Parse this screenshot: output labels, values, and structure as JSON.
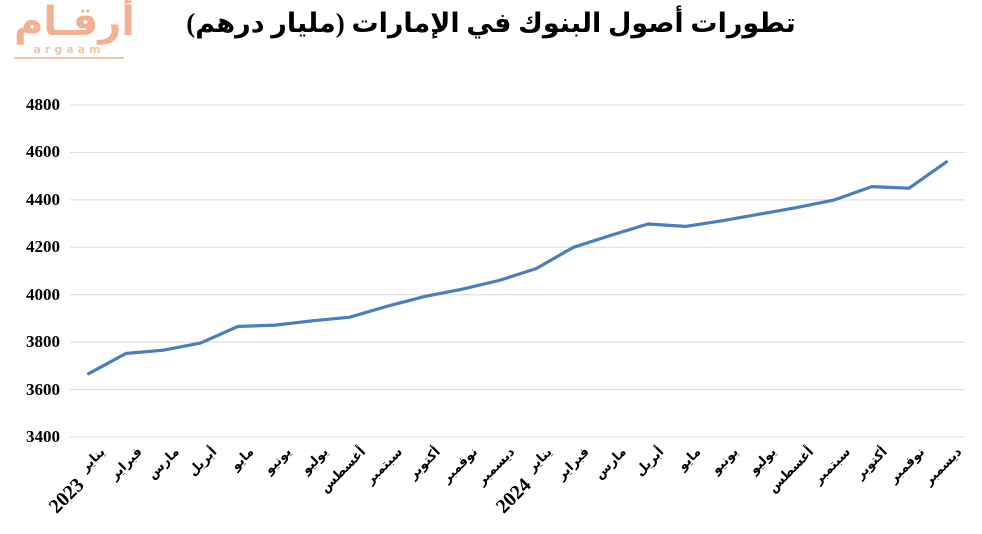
{
  "logo": {
    "arabic": "أرقـام",
    "latin": "argaam",
    "color": "#f1b294"
  },
  "chart_data": {
    "type": "line",
    "title": "تطورات أصول البنوك في الإمارات (مليار درهم)",
    "xlabel": "",
    "ylabel": "",
    "categories": [
      "يناير",
      "فبراير",
      "مارس",
      "أبريل",
      "مايو",
      "يونيو",
      "يوليو",
      "أغسطس",
      "سبتمبر",
      "أكتوبر",
      "نوفمبر",
      "ديسمبر",
      "يناير",
      "فبراير",
      "مارس",
      "أبريل",
      "مايو",
      "يونيو",
      "يوليو",
      "أغسطس",
      "سبتمبر",
      "أكتوبر",
      "نوفمبر",
      "ديسمبر"
    ],
    "year_labels": [
      {
        "index": 0,
        "label": "2023"
      },
      {
        "index": 12,
        "label": "2024"
      }
    ],
    "series": [
      {
        "name": "أصول البنوك (مليار درهم)",
        "values": [
          3667,
          3752,
          3766,
          3796,
          3866,
          3872,
          3890,
          3905,
          3951,
          3992,
          4023,
          4060,
          4110,
          4200,
          4250,
          4298,
          4288,
          4312,
          4340,
          4368,
          4400,
          4456,
          4449,
          4560
        ]
      }
    ],
    "ylim": [
      3400,
      4800
    ],
    "yticks": [
      3400,
      3600,
      3800,
      4000,
      4200,
      4400,
      4600,
      4800
    ],
    "grid": true,
    "legend": false,
    "line_color": "#4a7ebd",
    "grid_color": "#d9d9d9",
    "text_color": "#000000"
  }
}
